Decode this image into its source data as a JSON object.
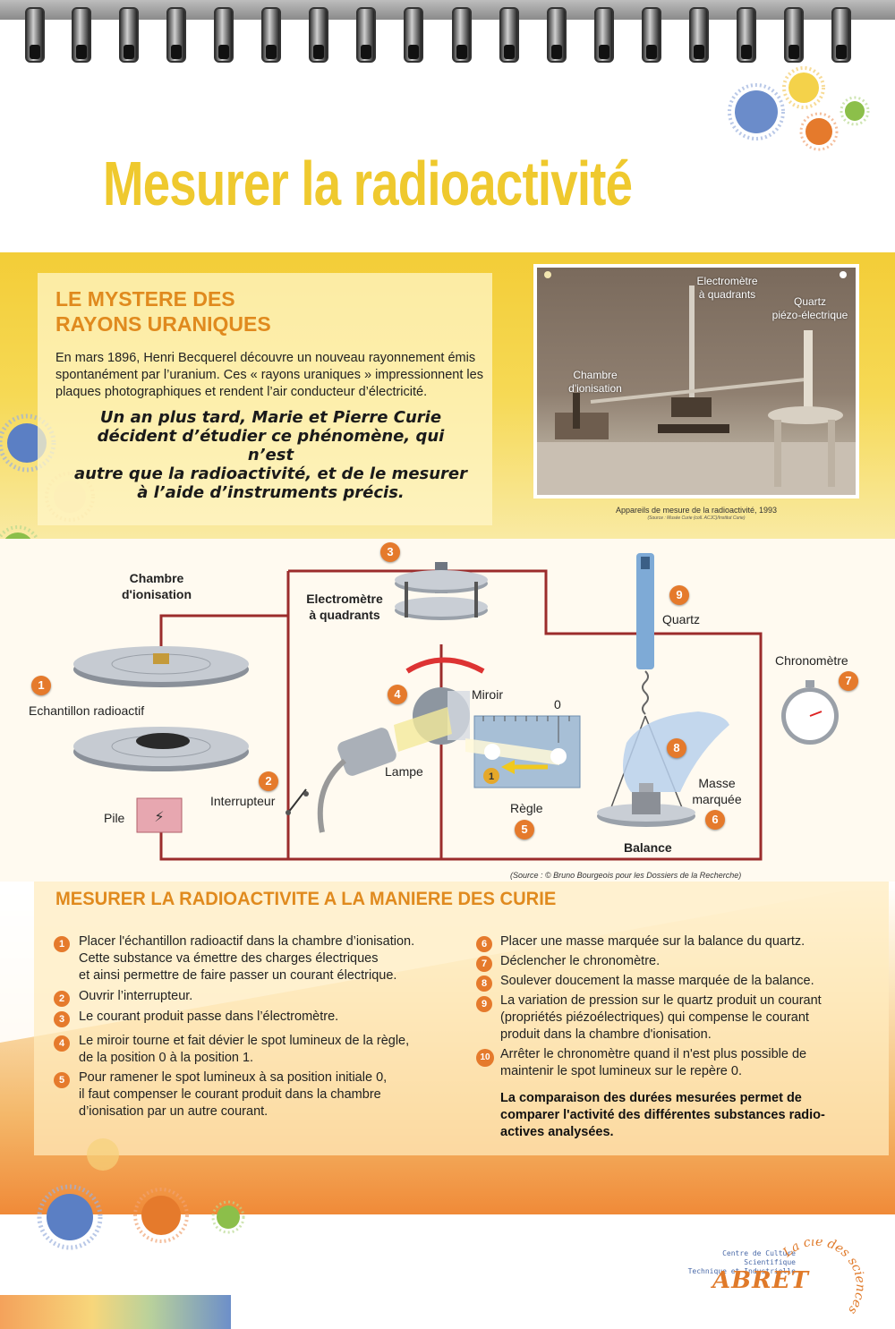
{
  "title": "Mesurer la radioactivité",
  "intro": {
    "heading_line1": "LE MYSTERE DES",
    "heading_line2": "RAYONS URANIQUES",
    "paragraph": "En mars 1896, Henri Becquerel découvre un nouveau rayonnement émis spontanément par l’uranium. Ces « rayons uraniques » impressionnent les plaques photographiques et rendent l’air conducteur d’électricité.",
    "quote_line1": "Un an plus tard, Marie et Pierre Curie",
    "quote_line2": "décident d’étudier ce phénomène, qui n’est",
    "quote_line3": "autre que la radioactivité, et de le mesurer",
    "quote_line4": "à l’aide d’instruments précis."
  },
  "photo": {
    "label_chambre_1": "Chambre",
    "label_chambre_2": "d'ionisation",
    "label_electrometre_1": "Electromètre",
    "label_electrometre_2": "à quadrants",
    "label_quartz_1": "Quartz",
    "label_quartz_2": "piézo-électrique",
    "caption": "Appareils de mesure de la radioactivité, 1993",
    "source": "(Source : Musée Curie (coll. ACJC)/Institut Curie)"
  },
  "diagram": {
    "chambre_line1": "Chambre",
    "chambre_line2": "d'ionisation",
    "echantillon": "Echantillon radioactif",
    "pile": "Pile",
    "interrupteur": "Interrupteur",
    "electrometre_line1": "Electromètre",
    "electrometre_line2": "à quadrants",
    "miroir": "Miroir",
    "lampe": "Lampe",
    "regle": "Règle",
    "zero": "0",
    "quartz": "Quartz",
    "chronometre": "Chronomètre",
    "masse_line1": "Masse",
    "masse_line2": "marquée",
    "balance": "Balance",
    "numbers": [
      "1",
      "2",
      "3",
      "4",
      "5",
      "6",
      "7",
      "8",
      "9"
    ],
    "source": "(Source : © Bruno Bourgeois pour les Dossiers de la Recherche)"
  },
  "steps": {
    "heading": "MESURER LA RADIOACTIVITE A LA MANIERE DES CURIE",
    "left": [
      {
        "num": "1",
        "l1": "Placer l'échantillon radioactif dans la chambre d’ionisation.",
        "l2": "Cette substance va émettre des charges électriques",
        "l3": "et ainsi permettre de faire passer un courant électrique."
      },
      {
        "num": "2",
        "l1": "Ouvrir l’interrupteur."
      },
      {
        "num": "3",
        "l1": "Le courant produit passe dans l’électromètre."
      },
      {
        "num": "4",
        "l1": "Le miroir tourne et fait dévier le spot lumineux de la règle,",
        "l2": "de la position 0 à la position 1."
      },
      {
        "num": "5",
        "l1": "Pour ramener le spot lumineux à sa position initiale 0,",
        "l2": "il faut compenser le courant produit dans la chambre",
        "l3": "d’ionisation par un autre courant."
      }
    ],
    "right": [
      {
        "num": "6",
        "l1": "Placer une masse marquée sur la balance du quartz."
      },
      {
        "num": "7",
        "l1": "Déclencher le chronomètre."
      },
      {
        "num": "8",
        "l1": "Soulever doucement la masse marquée de la balance."
      },
      {
        "num": "9",
        "l1": "La variation de pression sur le quartz produit un courant",
        "l2": "(propriétés piézoélectriques) qui compense le courant",
        "l3": "produit dans la chambre d'ionisation."
      },
      {
        "num": "10",
        "l1": "Arrêter le chronomètre quand il n'est plus possible de",
        "l2": "maintenir le spot lumineux sur le repère 0."
      }
    ],
    "conclusion_l1": "La comparaison des durées mesurées permet de",
    "conclusion_l2": "comparer l'activité des différentes substances radio-",
    "conclusion_l3": "actives analysées."
  },
  "footer": {
    "logo_line1": "Centre de Culture Scientifique",
    "logo_line2": "Technique et Industrielle",
    "logo_name": "ABRET",
    "logo_arc": "La clé des sciences"
  },
  "colors": {
    "title_yellow": "#efc92e",
    "heading_orange": "#e08a1e",
    "number_orange": "#e57a2c",
    "wire_red": "#9b2c2c"
  }
}
